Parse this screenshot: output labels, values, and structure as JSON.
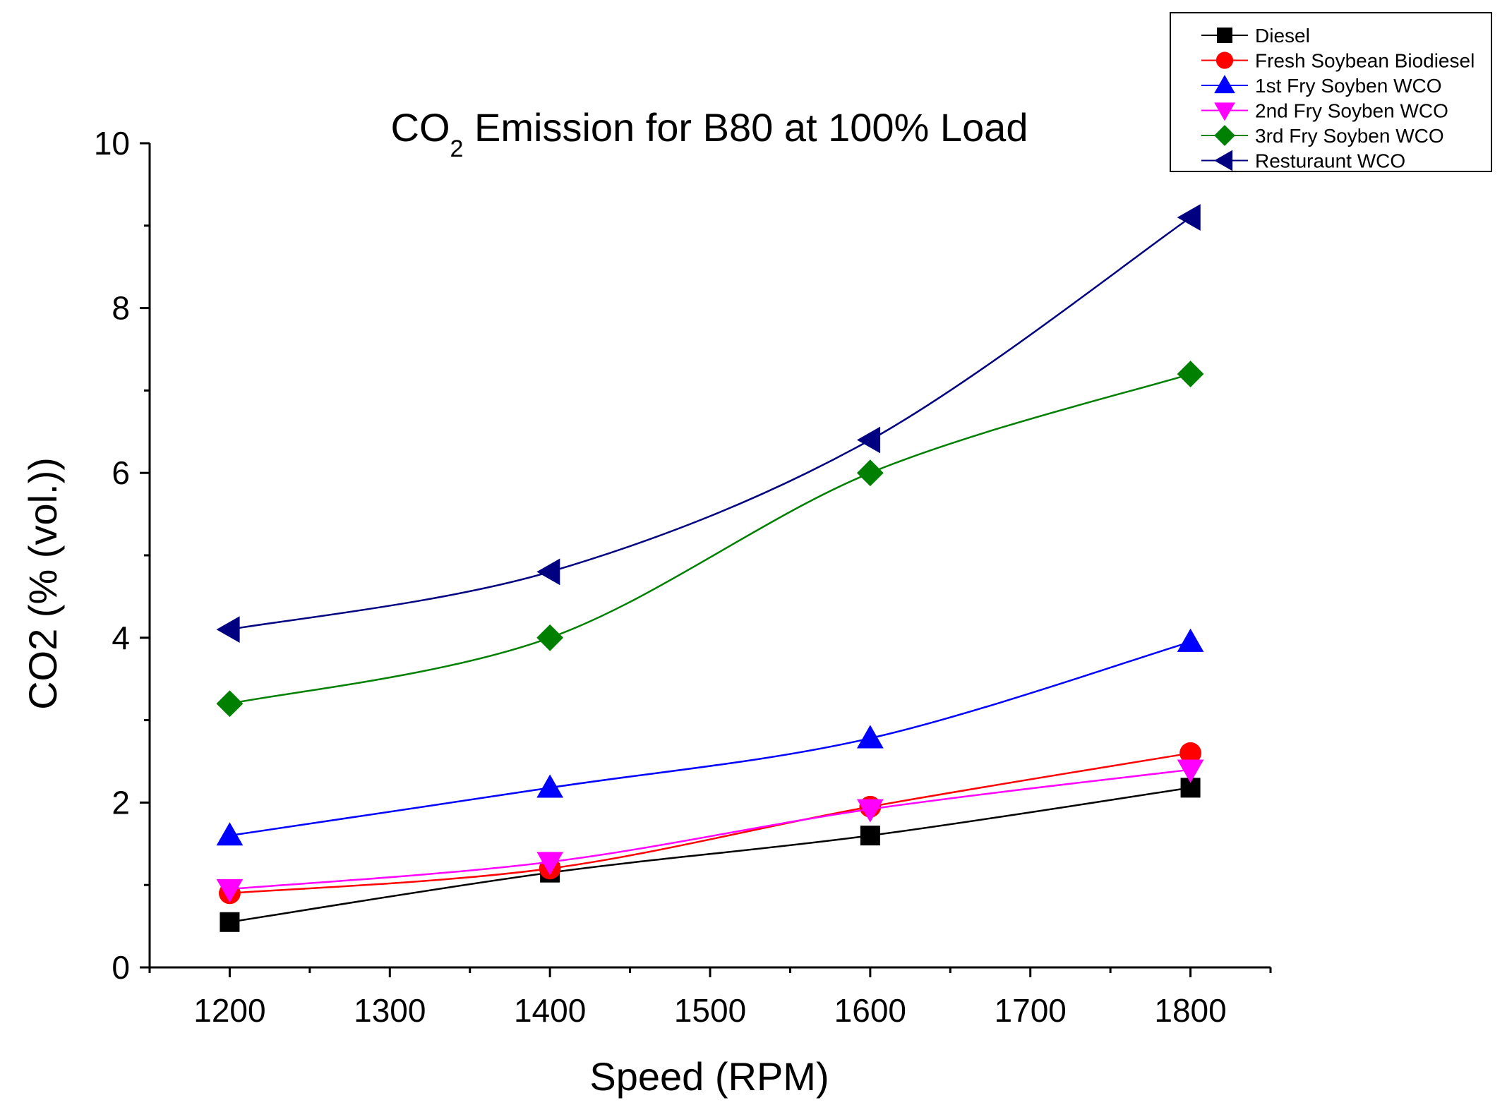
{
  "chart_data": {
    "type": "line",
    "title": {
      "prefix": "CO",
      "subscript": "2",
      "suffix": " Emission for B80 at 100% Load"
    },
    "xlabel": "Speed (RPM)",
    "ylabel": "CO2 (% (vol.))",
    "xlim": [
      1150,
      1850
    ],
    "ylim": [
      0,
      10
    ],
    "xticks": [
      1200,
      1300,
      1400,
      1500,
      1600,
      1700,
      1800
    ],
    "yticks": [
      0,
      2,
      4,
      6,
      8,
      10
    ],
    "legend_position": "top-right",
    "x": [
      1200,
      1400,
      1600,
      1800
    ],
    "series": [
      {
        "name": "Diesel",
        "values": [
          0.55,
          1.15,
          1.6,
          2.18
        ],
        "color": "#000000",
        "marker": "square"
      },
      {
        "name": "Fresh Soybean Biodiesel",
        "values": [
          0.9,
          1.2,
          1.95,
          2.6
        ],
        "color": "#ff0000",
        "marker": "circle"
      },
      {
        "name": "1st Fry Soyben WCO",
        "values": [
          1.6,
          2.18,
          2.78,
          3.95
        ],
        "color": "#0000ff",
        "marker": "triangle-up"
      },
      {
        "name": "2nd Fry Soyben WCO",
        "values": [
          0.95,
          1.28,
          1.92,
          2.4
        ],
        "color": "#ff00ff",
        "marker": "triangle-down"
      },
      {
        "name": "3rd Fry Soyben WCO",
        "values": [
          3.2,
          4.0,
          6.0,
          7.2
        ],
        "color": "#008000",
        "marker": "diamond"
      },
      {
        "name": "Resturaunt WCO",
        "values": [
          4.1,
          4.8,
          6.4,
          9.1
        ],
        "color": "#000080",
        "marker": "triangle-left"
      }
    ]
  }
}
